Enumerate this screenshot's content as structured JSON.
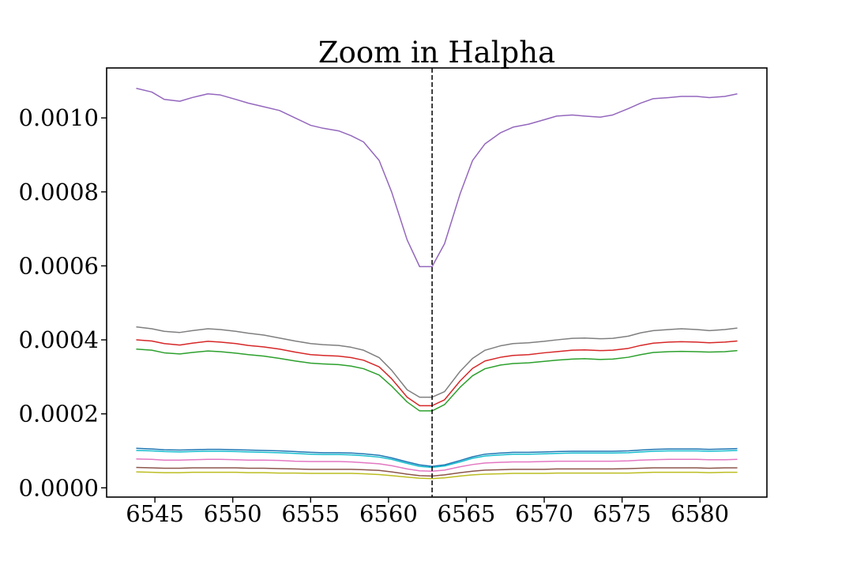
{
  "chart_data": {
    "type": "line",
    "title": "Zoom in Halpha",
    "xlabel": "",
    "ylabel": "",
    "xlim": [
      6541.9,
      6584.3
    ],
    "ylim": [
      -2.5e-05,
      0.001135
    ],
    "xticks": [
      6545,
      6550,
      6555,
      6560,
      6565,
      6570,
      6575,
      6580
    ],
    "xtick_labels": [
      "6545",
      "6550",
      "6555",
      "6560",
      "6565",
      "6570",
      "6575",
      "6580"
    ],
    "yticks": [
      0.0,
      0.0002,
      0.0004,
      0.0006,
      0.0008,
      0.001
    ],
    "ytick_labels": [
      "0.0000",
      "0.0002",
      "0.0004",
      "0.0006",
      "0.0008",
      "0.0010"
    ],
    "grid": false,
    "vline": {
      "x": 6562.8,
      "style": "dashed",
      "color": "#000000"
    },
    "x": [
      6543.8,
      6544.8,
      6545.6,
      6546.6,
      6547.4,
      6548.4,
      6549.2,
      6550.2,
      6551.0,
      6552.0,
      6553.0,
      6554.0,
      6555.0,
      6555.8,
      6556.8,
      6557.6,
      6558.4,
      6559.4,
      6560.2,
      6561.2,
      6562.0,
      6562.8,
      6563.6,
      6564.6,
      6565.4,
      6566.2,
      6567.2,
      6568.0,
      6569.0,
      6570.0,
      6570.8,
      6571.8,
      6572.6,
      6573.6,
      6574.4,
      6575.4,
      6576.2,
      6577.0,
      6578.0,
      6578.8,
      6579.8,
      6580.6,
      6581.6,
      6582.4
    ],
    "series": [
      {
        "color": "#9467bd",
        "values": [
          0.00108,
          0.00107,
          0.00105,
          0.001045,
          0.001055,
          0.001065,
          0.001062,
          0.00105,
          0.00104,
          0.00103,
          0.00102,
          0.001,
          0.00098,
          0.000972,
          0.000965,
          0.000952,
          0.000935,
          0.000885,
          0.0008,
          0.00067,
          0.000598,
          0.000598,
          0.00066,
          0.000795,
          0.000885,
          0.00093,
          0.00096,
          0.000975,
          0.000983,
          0.000995,
          0.001005,
          0.001008,
          0.001005,
          0.001002,
          0.001008,
          0.001025,
          0.00104,
          0.001052,
          0.001055,
          0.001058,
          0.001058,
          0.001055,
          0.001058,
          0.001065
        ]
      },
      {
        "color": "#7f7f7f",
        "values": [
          0.000435,
          0.00043,
          0.000423,
          0.00042,
          0.000425,
          0.00043,
          0.000428,
          0.000423,
          0.000418,
          0.000413,
          0.000405,
          0.000397,
          0.00039,
          0.000387,
          0.000385,
          0.00038,
          0.000372,
          0.000352,
          0.000318,
          0.000265,
          0.000245,
          0.000245,
          0.00026,
          0.000315,
          0.00035,
          0.000372,
          0.000384,
          0.00039,
          0.000392,
          0.000396,
          0.0004,
          0.000404,
          0.000405,
          0.000403,
          0.000404,
          0.00041,
          0.000419,
          0.000425,
          0.000428,
          0.00043,
          0.000428,
          0.000425,
          0.000428,
          0.000432
        ]
      },
      {
        "color": "#d62728",
        "values": [
          0.0004,
          0.000397,
          0.00039,
          0.000386,
          0.000391,
          0.000396,
          0.000394,
          0.00039,
          0.000385,
          0.000381,
          0.000375,
          0.000367,
          0.00036,
          0.000358,
          0.000356,
          0.000352,
          0.000345,
          0.000327,
          0.000295,
          0.000245,
          0.000222,
          0.000222,
          0.000238,
          0.000289,
          0.000323,
          0.000343,
          0.000353,
          0.000358,
          0.00036,
          0.000365,
          0.000368,
          0.000372,
          0.000373,
          0.000371,
          0.000372,
          0.000377,
          0.000385,
          0.000391,
          0.000394,
          0.000395,
          0.000394,
          0.000392,
          0.000394,
          0.000397
        ]
      },
      {
        "color": "#2ca02c",
        "values": [
          0.000375,
          0.000372,
          0.000365,
          0.000362,
          0.000366,
          0.00037,
          0.000368,
          0.000364,
          0.00036,
          0.000356,
          0.00035,
          0.000343,
          0.000337,
          0.000335,
          0.000333,
          0.000329,
          0.000322,
          0.000305,
          0.000275,
          0.000232,
          0.000208,
          0.000208,
          0.000225,
          0.000272,
          0.000303,
          0.000322,
          0.000332,
          0.000336,
          0.000338,
          0.000342,
          0.000345,
          0.000348,
          0.000349,
          0.000347,
          0.000348,
          0.000353,
          0.00036,
          0.000366,
          0.000368,
          0.000369,
          0.000368,
          0.000367,
          0.000368,
          0.000371
        ]
      },
      {
        "color": "#1f77b4",
        "values": [
          0.000107,
          0.000105,
          0.000103,
          0.000102,
          0.000103,
          0.000104,
          0.000104,
          0.000103,
          0.000102,
          0.000101,
          0.0001,
          9.8e-05,
          9.6e-05,
          9.5e-05,
          9.5e-05,
          9.4e-05,
          9.2e-05,
          8.8e-05,
          8.1e-05,
          7e-05,
          6.2e-05,
          5.8e-05,
          6.2e-05,
          7.4e-05,
          8.4e-05,
          9.1e-05,
          9.4e-05,
          9.6e-05,
          9.6e-05,
          9.7e-05,
          9.8e-05,
          9.9e-05,
          9.9e-05,
          9.9e-05,
          9.9e-05,
          0.0001,
          0.000102,
          0.000104,
          0.000105,
          0.000105,
          0.000105,
          0.000104,
          0.000105,
          0.000106
        ]
      },
      {
        "color": "#17becf",
        "values": [
          0.000101,
          0.0001,
          9.8e-05,
          9.7e-05,
          9.8e-05,
          9.9e-05,
          9.9e-05,
          9.8e-05,
          9.7e-05,
          9.6e-05,
          9.5e-05,
          9.3e-05,
          9.1e-05,
          9e-05,
          9e-05,
          8.9e-05,
          8.7e-05,
          8.3e-05,
          7.7e-05,
          6.6e-05,
          5.8e-05,
          5.5e-05,
          5.9e-05,
          7e-05,
          8e-05,
          8.6e-05,
          8.9e-05,
          9.1e-05,
          9.1e-05,
          9.2e-05,
          9.3e-05,
          9.4e-05,
          9.4e-05,
          9.4e-05,
          9.4e-05,
          9.5e-05,
          9.7e-05,
          9.9e-05,
          0.0001,
          0.0001,
          0.0001,
          9.9e-05,
          0.0001,
          0.000101
        ]
      },
      {
        "color": "#e377c2",
        "values": [
          7.8e-05,
          7.7e-05,
          7.5e-05,
          7.5e-05,
          7.6e-05,
          7.7e-05,
          7.7e-05,
          7.6e-05,
          7.5e-05,
          7.5e-05,
          7.4e-05,
          7.2e-05,
          7.1e-05,
          7.1e-05,
          7.1e-05,
          7e-05,
          6.8e-05,
          6.5e-05,
          6e-05,
          5.1e-05,
          4.6e-05,
          4.5e-05,
          4.8e-05,
          5.7e-05,
          6.3e-05,
          6.7e-05,
          6.9e-05,
          7e-05,
          7e-05,
          7.1e-05,
          7.2e-05,
          7.2e-05,
          7.2e-05,
          7.2e-05,
          7.2e-05,
          7.3e-05,
          7.5e-05,
          7.6e-05,
          7.7e-05,
          7.7e-05,
          7.7e-05,
          7.6e-05,
          7.6e-05,
          7.7e-05
        ]
      },
      {
        "color": "#8c564b",
        "values": [
          5.5e-05,
          5.4e-05,
          5.3e-05,
          5.3e-05,
          5.4e-05,
          5.4e-05,
          5.4e-05,
          5.4e-05,
          5.3e-05,
          5.3e-05,
          5.2e-05,
          5.1e-05,
          5e-05,
          5e-05,
          5e-05,
          5e-05,
          4.9e-05,
          4.7e-05,
          4.3e-05,
          3.7e-05,
          3.3e-05,
          3.2e-05,
          3.5e-05,
          4.1e-05,
          4.5e-05,
          4.8e-05,
          4.9e-05,
          5e-05,
          5e-05,
          5e-05,
          5.1e-05,
          5.1e-05,
          5.1e-05,
          5.1e-05,
          5.1e-05,
          5.2e-05,
          5.3e-05,
          5.4e-05,
          5.4e-05,
          5.4e-05,
          5.4e-05,
          5.3e-05,
          5.4e-05,
          5.4e-05
        ]
      },
      {
        "color": "#bcbd22",
        "values": [
          4.3e-05,
          4.2e-05,
          4.1e-05,
          4.1e-05,
          4.2e-05,
          4.2e-05,
          4.2e-05,
          4.2e-05,
          4.1e-05,
          4.1e-05,
          4e-05,
          4e-05,
          3.9e-05,
          3.9e-05,
          3.9e-05,
          3.9e-05,
          3.8e-05,
          3.6e-05,
          3.3e-05,
          2.9e-05,
          2.6e-05,
          2.5e-05,
          2.7e-05,
          3.2e-05,
          3.5e-05,
          3.7e-05,
          3.8e-05,
          3.9e-05,
          3.9e-05,
          3.9e-05,
          4e-05,
          4e-05,
          4e-05,
          4e-05,
          4e-05,
          4e-05,
          4.1e-05,
          4.2e-05,
          4.2e-05,
          4.2e-05,
          4.2e-05,
          4.1e-05,
          4.2e-05,
          4.2e-05
        ]
      }
    ]
  }
}
